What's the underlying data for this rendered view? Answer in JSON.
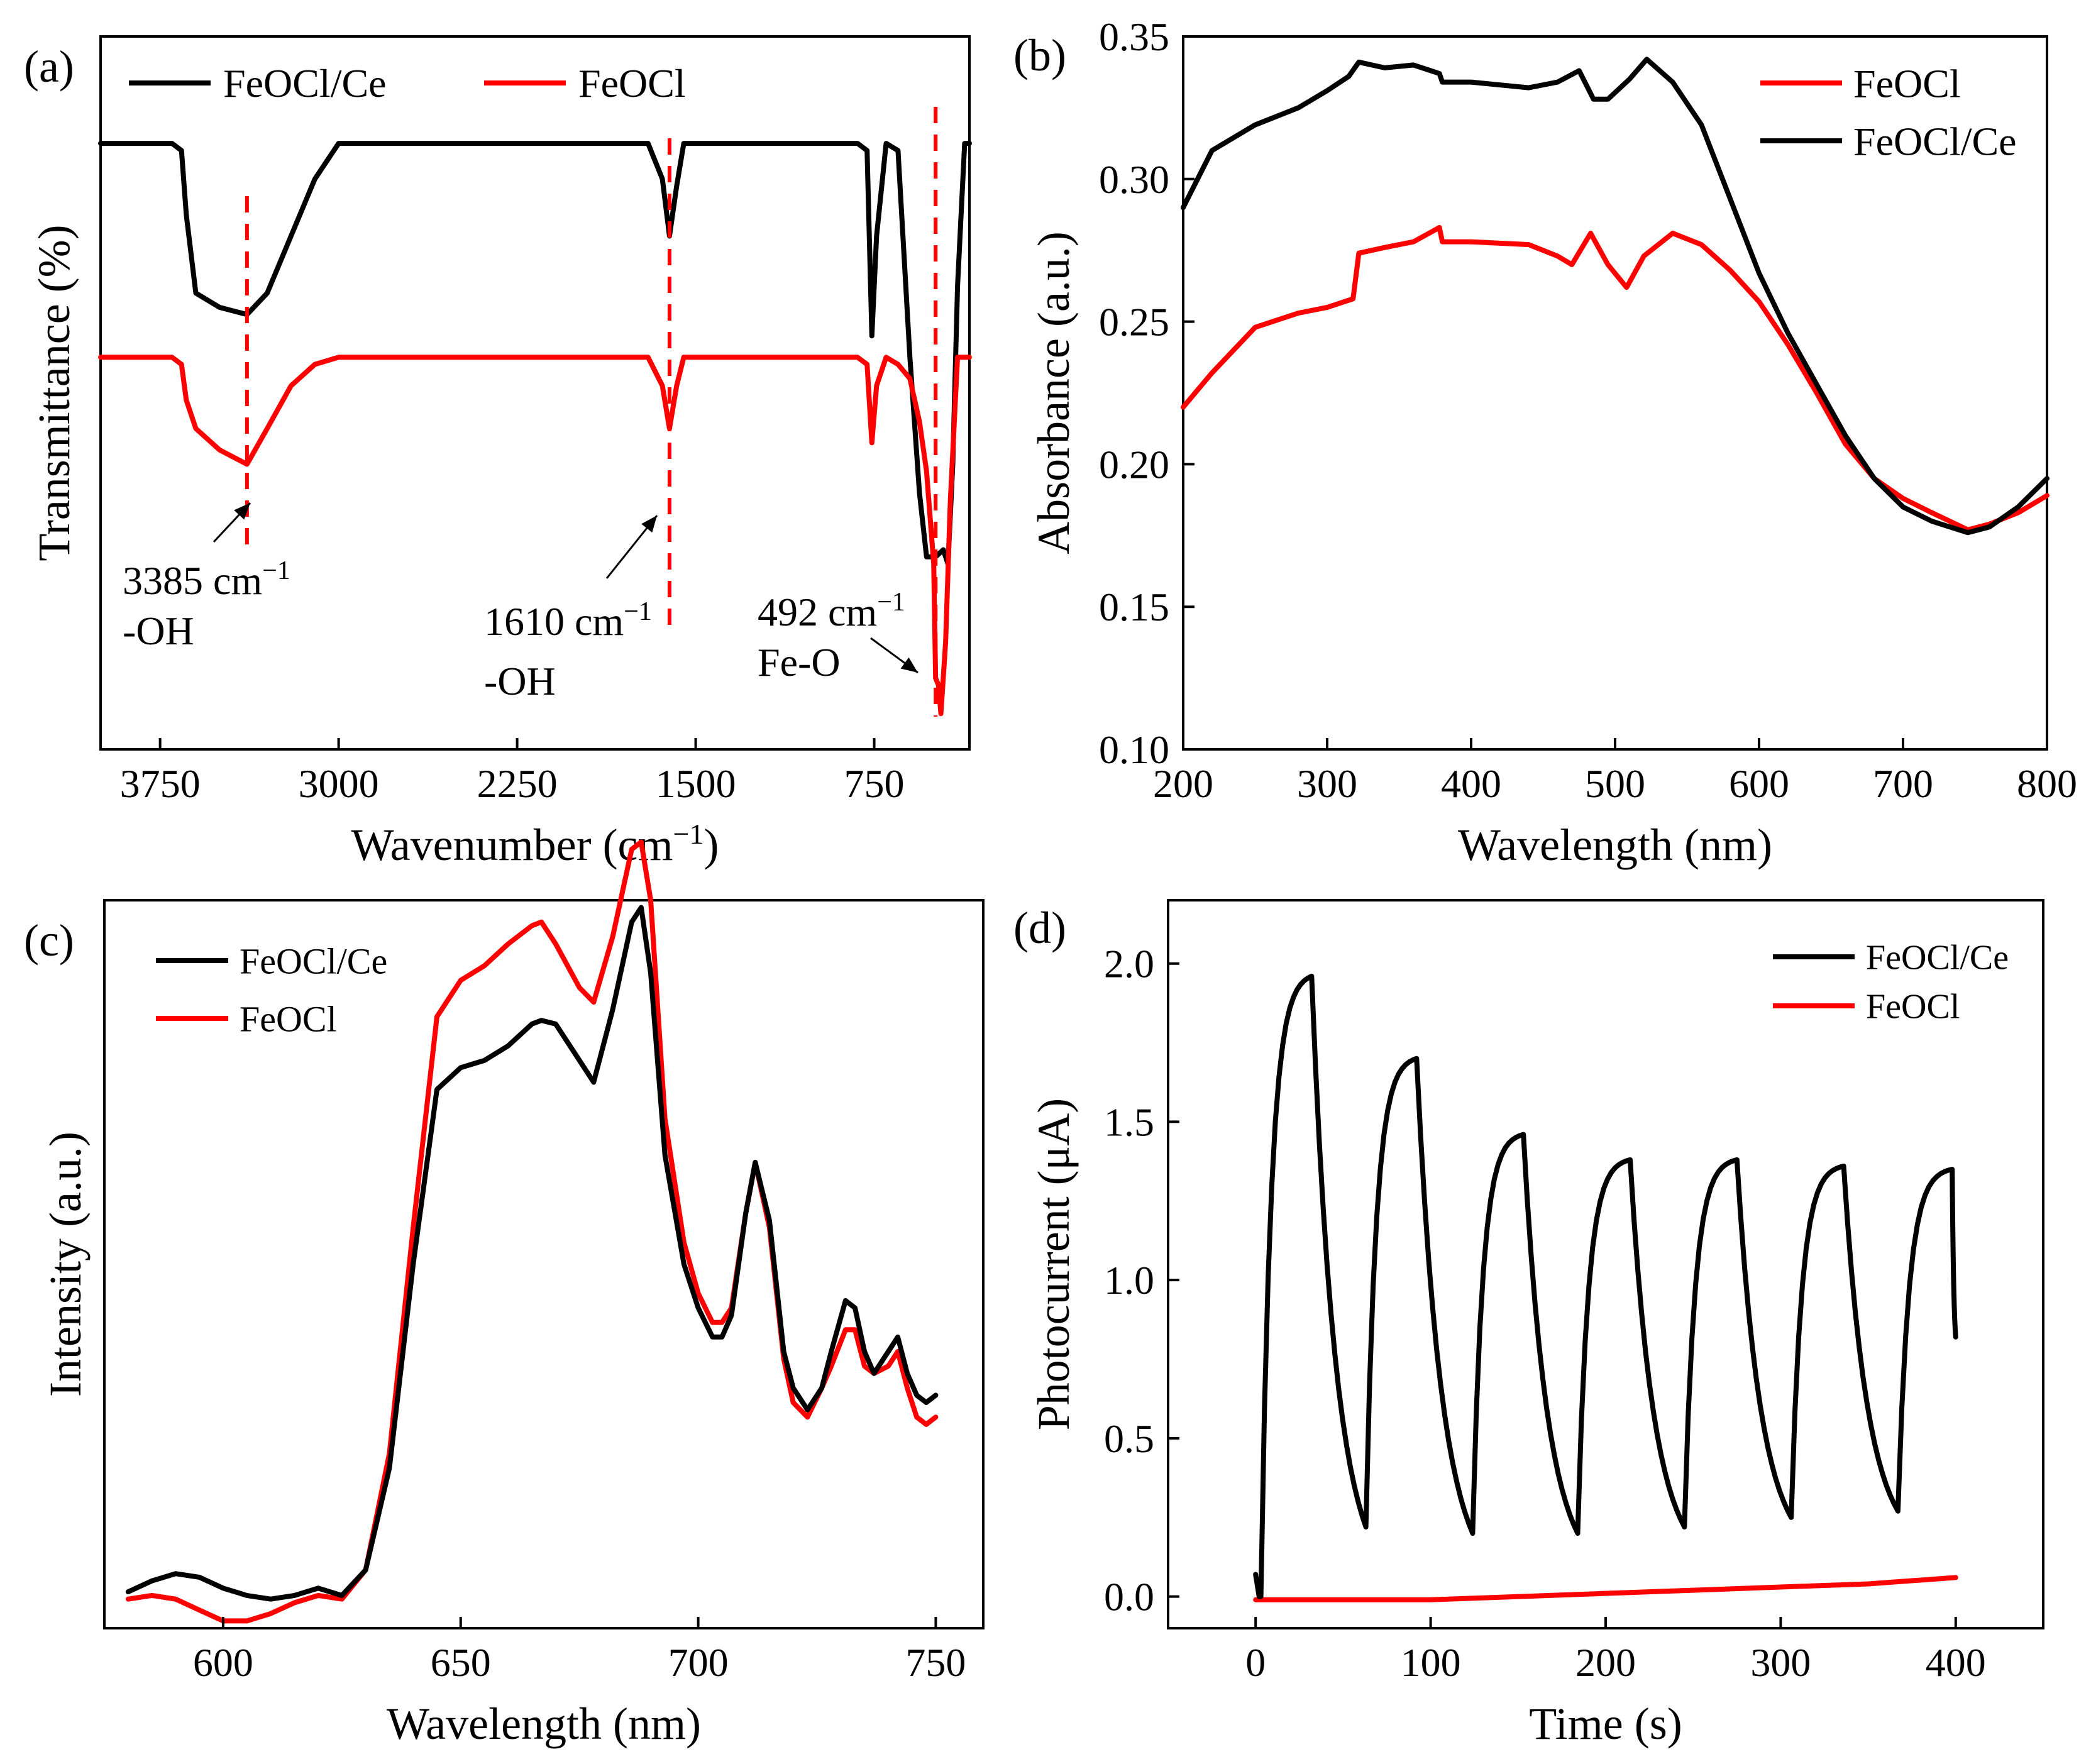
{
  "colors": {
    "FeOCl/Ce": "#000000",
    "FeOCl": "#ff0000",
    "annotation_line": "#ff0000"
  },
  "panels": {
    "a": {
      "label": "(a)"
    },
    "b": {
      "label": "(b)"
    },
    "c": {
      "label": "(c)"
    },
    "d": {
      "label": "(d)"
    }
  },
  "chart_data": [
    {
      "id": "a",
      "type": "line",
      "title": "",
      "xlabel": "Wavenumber (cm",
      "xlabel_sup": "−1",
      "xlabel_close": ")",
      "ylabel": "Transmittance (%)",
      "xlim": [
        4000,
        350
      ],
      "ylim": [
        0,
        100
      ],
      "xticks": [
        3750,
        3000,
        2250,
        1500,
        750
      ],
      "yticks_shown": false,
      "legend": {
        "position": "top",
        "entries": [
          "FeOCl/Ce",
          "FeOCl"
        ]
      },
      "annotations": [
        {
          "x": 3385,
          "line1": "3385 cm",
          "sup": "−1",
          "line2": "-OH"
        },
        {
          "x": 1610,
          "line1": "1610 cm",
          "sup": "−1",
          "line2": "-OH"
        },
        {
          "x": 492,
          "line1": "492 cm",
          "sup": "−1",
          "line2": "Fe-O"
        }
      ],
      "series": [
        {
          "name": "FeOCl/Ce",
          "x": [
            4000,
            3750,
            3700,
            3660,
            3640,
            3600,
            3500,
            3385,
            3300,
            3200,
            3100,
            3000,
            2500,
            2300,
            2000,
            1700,
            1640,
            1610,
            1580,
            1550,
            1200,
            950,
            820,
            780,
            760,
            740,
            700,
            650,
            600,
            560,
            530,
            492,
            460,
            440,
            420,
            400,
            370,
            350
          ],
          "y": [
            85,
            85,
            85,
            84,
            75,
            64,
            62,
            61,
            64,
            72,
            80,
            85,
            85,
            85,
            85,
            85,
            80,
            72,
            79,
            85,
            85,
            85,
            85,
            84,
            58,
            72,
            85,
            84,
            55,
            36,
            27,
            27,
            28,
            26,
            40,
            65,
            85,
            85
          ]
        },
        {
          "name": "FeOCl",
          "x": [
            4000,
            3750,
            3700,
            3660,
            3640,
            3600,
            3500,
            3385,
            3300,
            3200,
            3100,
            3000,
            2500,
            2300,
            2000,
            1700,
            1640,
            1610,
            1580,
            1550,
            1200,
            950,
            820,
            780,
            760,
            740,
            700,
            650,
            600,
            560,
            530,
            500,
            492,
            480,
            470,
            450,
            430,
            400,
            370,
            350
          ],
          "y": [
            55,
            55,
            55,
            54,
            49,
            45,
            42,
            40,
            45,
            51,
            54,
            55,
            55,
            55,
            55,
            55,
            51,
            45,
            51,
            55,
            55,
            55,
            55,
            54,
            43,
            51,
            55,
            54,
            52,
            46,
            39,
            26,
            10,
            9,
            5,
            15,
            35,
            55,
            55,
            55
          ]
        }
      ]
    },
    {
      "id": "b",
      "type": "line",
      "title": "",
      "xlabel": "Wavelength (nm)",
      "ylabel": "Absorbance (a.u.)",
      "xlim": [
        200,
        800
      ],
      "ylim": [
        0.1,
        0.35
      ],
      "xticks": [
        200,
        300,
        400,
        500,
        600,
        700,
        800
      ],
      "yticks": [
        0.1,
        0.15,
        0.2,
        0.25,
        0.3,
        0.35
      ],
      "ytick_labels": [
        "0.10",
        "0.15",
        "0.20",
        "0.25",
        "0.30",
        "0.35"
      ],
      "legend": {
        "position": "top-right",
        "entries": [
          "FeOCl",
          "FeOCl/Ce"
        ]
      },
      "series": [
        {
          "name": "FeOCl",
          "x": [
            200,
            220,
            250,
            280,
            300,
            318,
            322,
            340,
            360,
            378,
            380,
            400,
            440,
            460,
            470,
            483,
            495,
            508,
            520,
            540,
            560,
            580,
            600,
            620,
            640,
            660,
            680,
            700,
            720,
            745,
            760,
            780,
            800
          ],
          "y": [
            0.22,
            0.232,
            0.248,
            0.253,
            0.255,
            0.258,
            0.274,
            0.276,
            0.278,
            0.283,
            0.278,
            0.278,
            0.277,
            0.273,
            0.27,
            0.281,
            0.27,
            0.262,
            0.273,
            0.281,
            0.277,
            0.268,
            0.257,
            0.242,
            0.225,
            0.207,
            0.195,
            0.188,
            0.183,
            0.177,
            0.179,
            0.183,
            0.189
          ]
        },
        {
          "name": "FeOCl/Ce",
          "x": [
            200,
            220,
            250,
            280,
            300,
            315,
            322,
            340,
            360,
            378,
            380,
            400,
            440,
            460,
            475,
            485,
            495,
            510,
            522,
            540,
            560,
            580,
            600,
            620,
            640,
            660,
            680,
            700,
            720,
            745,
            760,
            780,
            800
          ],
          "y": [
            0.29,
            0.31,
            0.319,
            0.325,
            0.331,
            0.336,
            0.341,
            0.339,
            0.34,
            0.337,
            0.334,
            0.334,
            0.332,
            0.334,
            0.338,
            0.328,
            0.328,
            0.335,
            0.342,
            0.334,
            0.319,
            0.293,
            0.267,
            0.246,
            0.228,
            0.21,
            0.195,
            0.185,
            0.18,
            0.176,
            0.178,
            0.185,
            0.195
          ]
        }
      ]
    },
    {
      "id": "c",
      "type": "line",
      "title": "",
      "xlabel": "Wavelength (nm)",
      "ylabel": "Intensity (a.u.)",
      "xlim": [
        575,
        760
      ],
      "ylim": [
        0,
        100
      ],
      "xticks": [
        600,
        650,
        700,
        750
      ],
      "yticks_shown": false,
      "legend": {
        "position": "top-left",
        "entries": [
          "FeOCl/Ce",
          "FeOCl"
        ]
      },
      "series": [
        {
          "name": "FeOCl/Ce",
          "x": [
            580,
            585,
            590,
            595,
            600,
            605,
            610,
            615,
            620,
            625,
            630,
            635,
            640,
            645,
            650,
            655,
            660,
            665,
            667,
            670,
            675,
            678,
            682,
            686,
            688,
            690,
            693,
            697,
            700,
            703,
            705,
            707,
            710,
            712,
            715,
            718,
            720,
            723,
            726,
            728,
            731,
            733,
            735,
            737,
            740,
            742,
            744,
            746,
            748,
            750
          ],
          "y": [
            5,
            6.5,
            7.5,
            7,
            5.5,
            4.5,
            4,
            4.5,
            5.5,
            4.5,
            8,
            22,
            50,
            74,
            77,
            78,
            80,
            83,
            83.5,
            83,
            78,
            75,
            85,
            97,
            99,
            90,
            65,
            50,
            44,
            40,
            40,
            43,
            57,
            64,
            56,
            38,
            33,
            30,
            33,
            38,
            45,
            44,
            38,
            35,
            38,
            40,
            35,
            32,
            31,
            32
          ]
        },
        {
          "name": "FeOCl",
          "x": [
            580,
            585,
            590,
            595,
            600,
            605,
            610,
            615,
            620,
            625,
            630,
            635,
            640,
            645,
            650,
            655,
            660,
            665,
            667,
            670,
            675,
            678,
            682,
            686,
            688,
            690,
            693,
            697,
            700,
            703,
            705,
            707,
            710,
            712,
            715,
            718,
            720,
            723,
            726,
            728,
            731,
            733,
            735,
            737,
            740,
            742,
            744,
            746,
            748,
            750
          ],
          "y": [
            4,
            4.5,
            4,
            2.5,
            1,
            1,
            2,
            3.5,
            4.5,
            4,
            8,
            24,
            55,
            84,
            89,
            91,
            94,
            96.5,
            97,
            94,
            88,
            86,
            95,
            107,
            108,
            100,
            70,
            53,
            46,
            42,
            42,
            44,
            57,
            64,
            55,
            37,
            31,
            29,
            33,
            36,
            41,
            41,
            36,
            35,
            36,
            38,
            33,
            29,
            28,
            29
          ]
        }
      ]
    },
    {
      "id": "d",
      "type": "line",
      "title": "",
      "xlabel": "Time (s)",
      "ylabel": "Photocurrent (μA)",
      "xlim": [
        -50,
        450
      ],
      "ylim": [
        -0.1,
        2.2
      ],
      "xticks": [
        0,
        100,
        200,
        300,
        400
      ],
      "yticks": [
        0.0,
        0.5,
        1.0,
        1.5,
        2.0
      ],
      "ytick_labels": [
        "0.0",
        "0.5",
        "1.0",
        "1.5",
        "2.0"
      ],
      "legend": {
        "position": "top-right",
        "entries": [
          "FeOCl/Ce",
          "FeOCl"
        ]
      },
      "cycles": [
        {
          "on": 3,
          "off": 32,
          "peak": 1.96,
          "trough": 0.22,
          "end_off": 63
        },
        {
          "on": 63,
          "off": 92,
          "peak": 1.7,
          "trough": 0.2,
          "end_off": 124
        },
        {
          "on": 124,
          "off": 153,
          "peak": 1.46,
          "trough": 0.2,
          "end_off": 184
        },
        {
          "on": 184,
          "off": 214,
          "peak": 1.38,
          "trough": 0.22,
          "end_off": 245
        },
        {
          "on": 245,
          "off": 275,
          "peak": 1.38,
          "trough": 0.25,
          "end_off": 306
        },
        {
          "on": 306,
          "off": 336,
          "peak": 1.36,
          "trough": 0.27,
          "end_off": 367
        },
        {
          "on": 367,
          "off": 398,
          "peak": 1.35,
          "trough": 0.82,
          "end_off": 400
        }
      ],
      "series": [
        {
          "name": "FeOCl/Ce",
          "derived_from": "cycles"
        },
        {
          "name": "FeOCl",
          "x": [
            0,
            100,
            150,
            200,
            250,
            300,
            350,
            400
          ],
          "y": [
            -0.01,
            -0.01,
            0.0,
            0.01,
            0.02,
            0.03,
            0.04,
            0.06
          ]
        }
      ]
    }
  ]
}
